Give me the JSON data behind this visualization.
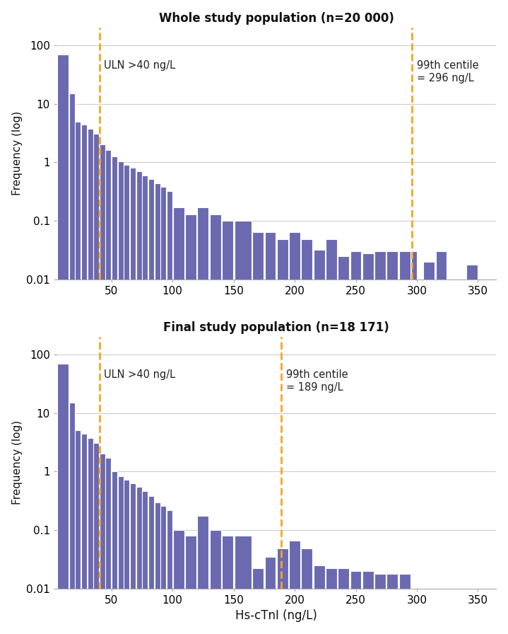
{
  "top_title": "Whole study population (n=20 000)",
  "bottom_title": "Final study population (n=18 171)",
  "xlabel": "Hs-cTnI (ng/L)",
  "ylabel": "Frequency (log)",
  "bar_color": "#6B69B0",
  "dashed_color": "#F5A623",
  "background_color": "#FFFFFF",
  "plot_bg_color": "#FFFFFF",
  "top_uln_x": 40,
  "top_centile_x": 296,
  "top_uln_label": "ULN >40 ng/L",
  "top_centile_label": "99th centile\n= 296 ng/L",
  "bottom_uln_x": 40,
  "bottom_centile_x": 189,
  "bottom_uln_label": "ULN >40 ng/L",
  "bottom_centile_label": "99th centile\n= 189 ng/L",
  "xlim": [
    5,
    365
  ],
  "ylim_log": [
    0.01,
    200
  ],
  "xticks": [
    50,
    100,
    150,
    200,
    250,
    300,
    350
  ],
  "bin_width": 10,
  "bin_starts": [
    5,
    15,
    20,
    25,
    30,
    35,
    40,
    45,
    50,
    55,
    60,
    65,
    70,
    75,
    80,
    85,
    90,
    95,
    100,
    110,
    120,
    130,
    140,
    150,
    165,
    175,
    185,
    195,
    205,
    215,
    225,
    235,
    245,
    255,
    265,
    275,
    285,
    295,
    305,
    315,
    325,
    340,
    350
  ],
  "top_heights": [
    70,
    15,
    5.0,
    4.4,
    3.7,
    3.1,
    2.0,
    1.6,
    1.25,
    1.05,
    0.9,
    0.8,
    0.7,
    0.6,
    0.52,
    0.44,
    0.38,
    0.32,
    0.17,
    0.13,
    0.17,
    0.13,
    0.1,
    0.1,
    0.065,
    0.065,
    0.048,
    0.065,
    0.048,
    0.032,
    0.048,
    0.025,
    0.03,
    0.028,
    0.03,
    0.03,
    0.03,
    0.03,
    0.02,
    0.03,
    0.0,
    0.018,
    0.0
  ],
  "top_widths": [
    10,
    5,
    5,
    5,
    5,
    5,
    5,
    5,
    5,
    5,
    5,
    5,
    5,
    5,
    5,
    5,
    5,
    5,
    10,
    10,
    10,
    10,
    10,
    15,
    10,
    10,
    10,
    10,
    10,
    10,
    10,
    10,
    10,
    10,
    10,
    10,
    10,
    5,
    10,
    10,
    0,
    10,
    0
  ],
  "bottom_heights": [
    70,
    15,
    5.0,
    4.4,
    3.7,
    3.1,
    2.0,
    1.7,
    1.0,
    0.82,
    0.72,
    0.62,
    0.54,
    0.46,
    0.38,
    0.3,
    0.26,
    0.22,
    0.1,
    0.08,
    0.175,
    0.1,
    0.08,
    0.08,
    0.022,
    0.035,
    0.048,
    0.065,
    0.048,
    0.025,
    0.022,
    0.022,
    0.02,
    0.02,
    0.018,
    0.018,
    0.018,
    0.0,
    0.0,
    0.0,
    0.0,
    0.0,
    0.0
  ],
  "bottom_widths": [
    10,
    5,
    5,
    5,
    5,
    5,
    5,
    5,
    5,
    5,
    5,
    5,
    5,
    5,
    5,
    5,
    5,
    5,
    10,
    10,
    10,
    10,
    10,
    15,
    10,
    10,
    10,
    10,
    10,
    10,
    10,
    10,
    10,
    10,
    10,
    10,
    10,
    0,
    0,
    0,
    0,
    0,
    0
  ]
}
